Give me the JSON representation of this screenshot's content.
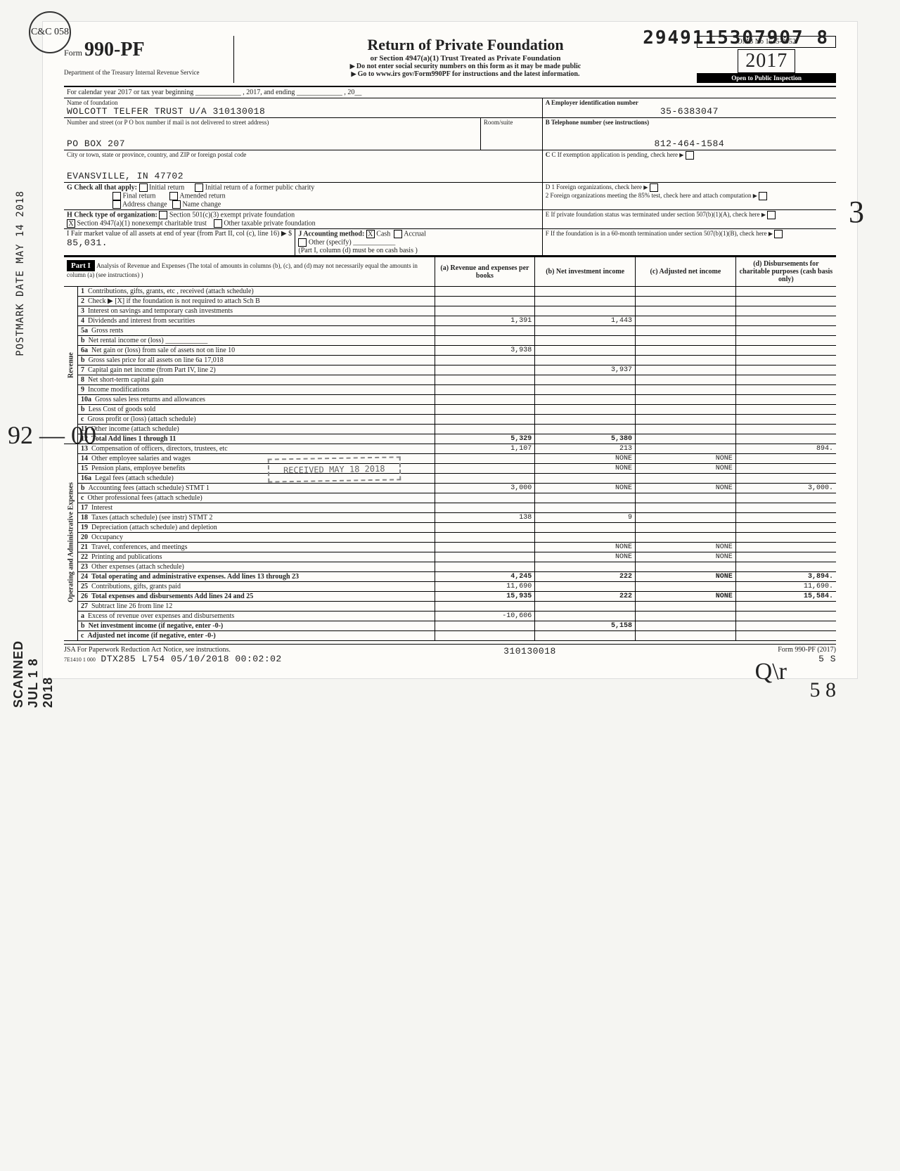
{
  "doc_id": "2949115307907 8",
  "stamp_circle": "C&C 058",
  "form": {
    "prefix": "Form",
    "number": "990-PF"
  },
  "dept": "Department of the Treasury\nInternal Revenue Service",
  "title": "Return of Private Foundation",
  "subtitle": "or Section 4947(a)(1) Trust Treated as Private Foundation",
  "warn1": "Do not enter social security numbers on this form as it may be made public",
  "warn2": "Go to www.irs gov/Form990PF for instructions and the latest information.",
  "omb": "OMB No 1545-0052",
  "year": "2017",
  "inspect": "Open to Public Inspection",
  "cal_line": "For calendar year 2017 or tax year beginning _____________ , 2017, and ending _____________ , 20__",
  "name_lbl": "Name of foundation",
  "name": "WOLCOTT TELFER TRUST U/A 310130018",
  "ein_lbl": "A  Employer identification number",
  "ein": "35-6383047",
  "addr_lbl": "Number and street (or P O box number if mail is not delivered to street address)",
  "room_lbl": "Room/suite",
  "tel_lbl": "B  Telephone number (see instructions)",
  "addr": "PO BOX 207",
  "tel": "812-464-1584",
  "city_lbl": "City or town, state or province, country, and ZIP or foreign postal code",
  "city": "EVANSVILLE, IN 47702",
  "c_lbl": "C  If exemption application is pending, check here",
  "g_lbl": "G Check all that apply:",
  "g_opts": [
    "Initial return",
    "Final return",
    "Address change",
    "Initial return of a former public charity",
    "Amended return",
    "Name change"
  ],
  "d1": "D  1 Foreign organizations, check here",
  "d2": "2 Foreign organizations meeting the 85% test, check here and attach computation",
  "h_lbl": "H Check type of organization:",
  "h_opts": [
    "Section 501(c)(3) exempt private foundation",
    "Section 4947(a)(1) nonexempt charitable trust",
    "Other taxable private foundation"
  ],
  "e_lbl": "E  If private foundation status was terminated under section 507(b)(1)(A), check here",
  "i_lbl": "I  Fair market value of all assets at end of year (from Part II, col (c), line 16) ▶ $",
  "i_val": "85,031.",
  "j_lbl": "J Accounting method:",
  "j_cash": "Cash",
  "j_accrual": "Accrual",
  "j_other": "Other (specify) ____________",
  "j_note": "(Part I, column (d) must be on cash basis )",
  "f_lbl": "F  If the foundation is in a 60-month termination under section 507(b)(1)(B), check here",
  "part1_hdr": "Part I",
  "part1_title": "Analysis of Revenue and Expenses (The total of amounts in columns (b), (c), and (d) may not necessarily equal the amounts in column (a) (see instructions) )",
  "cols": {
    "a": "(a) Revenue and expenses per books",
    "b": "(b) Net investment income",
    "c": "(c) Adjusted net income",
    "d": "(d) Disbursements for charitable purposes (cash basis only)"
  },
  "side_rev": "Revenue",
  "side_exp": "Operating and Administrative Expenses",
  "rows": [
    {
      "n": "1",
      "d": "Contributions, gifts, grants, etc , received (attach schedule)"
    },
    {
      "n": "2",
      "d": "Check ▶ [X] if the foundation is not required to attach Sch B"
    },
    {
      "n": "3",
      "d": "Interest on savings and temporary cash investments"
    },
    {
      "n": "4",
      "d": "Dividends and interest from securities",
      "a": "1,391",
      "b": "1,443"
    },
    {
      "n": "5a",
      "d": "Gross rents"
    },
    {
      "n": "b",
      "d": "Net rental income or (loss) ____________"
    },
    {
      "n": "6a",
      "d": "Net gain or (loss) from sale of assets not on line 10",
      "a": "3,938"
    },
    {
      "n": "b",
      "d": "Gross sales price for all assets on line 6a      17,018"
    },
    {
      "n": "7",
      "d": "Capital gain net income (from Part IV, line 2)",
      "b": "3,937"
    },
    {
      "n": "8",
      "d": "Net short-term capital gain"
    },
    {
      "n": "9",
      "d": "Income modifications"
    },
    {
      "n": "10a",
      "d": "Gross sales less returns and allowances"
    },
    {
      "n": "b",
      "d": "Less Cost of goods sold"
    },
    {
      "n": "c",
      "d": "Gross profit or (loss) (attach schedule)"
    },
    {
      "n": "11",
      "d": "Other income (attach schedule)"
    },
    {
      "n": "12",
      "d": "Total Add lines 1 through 11",
      "a": "5,329",
      "b": "5,380",
      "bold": true
    },
    {
      "n": "13",
      "d": "Compensation of officers, directors, trustees, etc",
      "a": "1,107",
      "b": "213",
      "dd": "894."
    },
    {
      "n": "14",
      "d": "Other employee salaries and wages",
      "b": "NONE",
      "c": "NONE"
    },
    {
      "n": "15",
      "d": "Pension plans, employee benefits",
      "b": "NONE",
      "c": "NONE"
    },
    {
      "n": "16a",
      "d": "Legal fees (attach schedule)"
    },
    {
      "n": "b",
      "d": "Accounting fees (attach schedule) STMT 1",
      "a": "3,000",
      "b": "NONE",
      "c": "NONE",
      "dd": "3,000."
    },
    {
      "n": "c",
      "d": "Other professional fees (attach schedule)"
    },
    {
      "n": "17",
      "d": "Interest"
    },
    {
      "n": "18",
      "d": "Taxes (attach schedule) (see instr) STMT 2",
      "a": "138",
      "b": "9"
    },
    {
      "n": "19",
      "d": "Depreciation (attach schedule) and depletion"
    },
    {
      "n": "20",
      "d": "Occupancy"
    },
    {
      "n": "21",
      "d": "Travel, conferences, and meetings",
      "b": "NONE",
      "c": "NONE"
    },
    {
      "n": "22",
      "d": "Printing and publications",
      "b": "NONE",
      "c": "NONE"
    },
    {
      "n": "23",
      "d": "Other expenses (attach schedule)"
    },
    {
      "n": "24",
      "d": "Total operating and administrative expenses. Add lines 13 through 23",
      "a": "4,245",
      "b": "222",
      "c": "NONE",
      "dd": "3,894.",
      "bold": true
    },
    {
      "n": "25",
      "d": "Contributions, gifts, grants paid",
      "a": "11,690",
      "dd": "11,690."
    },
    {
      "n": "26",
      "d": "Total expenses and disbursements Add lines 24 and 25",
      "a": "15,935",
      "b": "222",
      "c": "NONE",
      "dd": "15,584.",
      "bold": true
    },
    {
      "n": "27",
      "d": "Subtract line 26 from line 12"
    },
    {
      "n": "a",
      "d": "Excess of revenue over expenses and disbursements",
      "a": "-10,606"
    },
    {
      "n": "b",
      "d": "Net investment income (if negative, enter -0-)",
      "b": "5,158",
      "bold": true
    },
    {
      "n": "c",
      "d": "Adjusted net income (if negative, enter -0-)",
      "bold": true
    }
  ],
  "footer": {
    "left": "JSA For Paperwork Reduction Act Notice, see instructions.",
    "left2": "7E1410 1 000",
    "mid": "DTX285 L754 05/10/2018 00:02:02",
    "mid2": "310130018",
    "right": "Form 990-PF (2017)",
    "right2": "5      S"
  },
  "recvd_stamp": "RECEIVED  MAY 18 2018",
  "side_postmark": "POSTMARK DATE  MAY 14 2018",
  "scanned": "SCANNED JUL 1 8 2018",
  "hand": {
    "three": "3",
    "ninetwo": "92\n—\n00",
    "qr": "Q\\r",
    "fiveeight": "5\n8"
  }
}
